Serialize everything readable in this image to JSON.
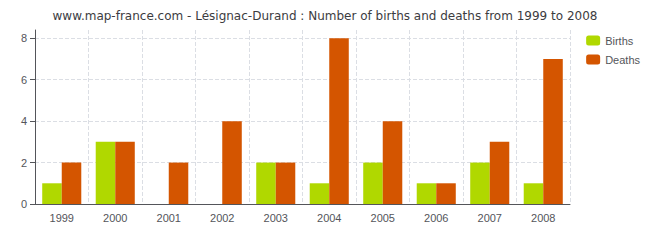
{
  "chart_data": {
    "type": "bar",
    "title": "www.map-france.com - Lésignac-Durand : Number of births and deaths from 1999 to 2008",
    "categories": [
      "1999",
      "2000",
      "2001",
      "2002",
      "2003",
      "2004",
      "2005",
      "2006",
      "2007",
      "2008"
    ],
    "series": [
      {
        "name": "Births",
        "color": "#b0d800",
        "values": [
          1,
          3,
          0,
          0,
          2,
          1,
          2,
          1,
          2,
          1
        ]
      },
      {
        "name": "Deaths",
        "color": "#d45500",
        "values": [
          2,
          3,
          2,
          4,
          2,
          8,
          4,
          1,
          3,
          7
        ]
      }
    ],
    "ylim": [
      0,
      8.4
    ],
    "yticks": [
      0,
      2,
      4,
      6,
      8
    ],
    "grid": true,
    "legend": "upper right"
  }
}
